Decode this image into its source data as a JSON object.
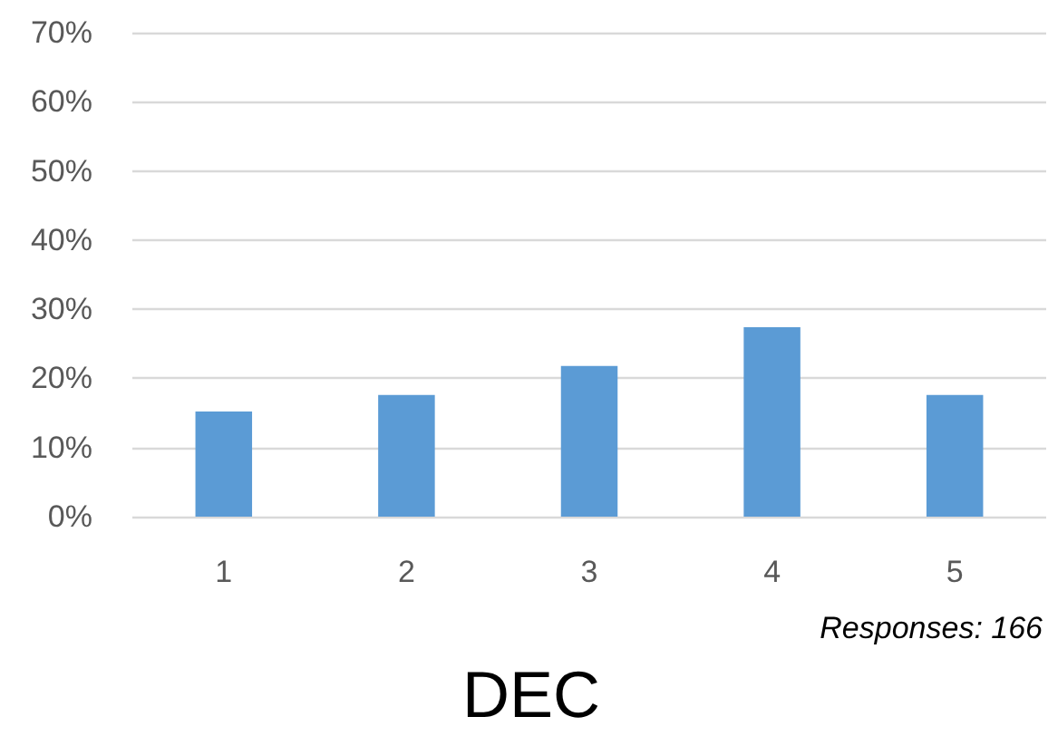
{
  "chart_data": {
    "type": "bar",
    "title": "DEC",
    "categories": [
      "1",
      "2",
      "3",
      "4",
      "5"
    ],
    "values": [
      15.2,
      17.6,
      21.8,
      27.4,
      17.6
    ],
    "color": "#5b9bd5",
    "ylim": [
      0,
      70
    ],
    "yticks": [
      {
        "value": 0,
        "label": "0%"
      },
      {
        "value": 10,
        "label": "10%"
      },
      {
        "value": 20,
        "label": "20%"
      },
      {
        "value": 30,
        "label": "30%"
      },
      {
        "value": 40,
        "label": "40%"
      },
      {
        "value": 50,
        "label": "50%"
      },
      {
        "value": 60,
        "label": "60%"
      },
      {
        "value": 70,
        "label": "70%"
      }
    ],
    "grid": true,
    "annotations": [
      "Responses: 166"
    ]
  }
}
